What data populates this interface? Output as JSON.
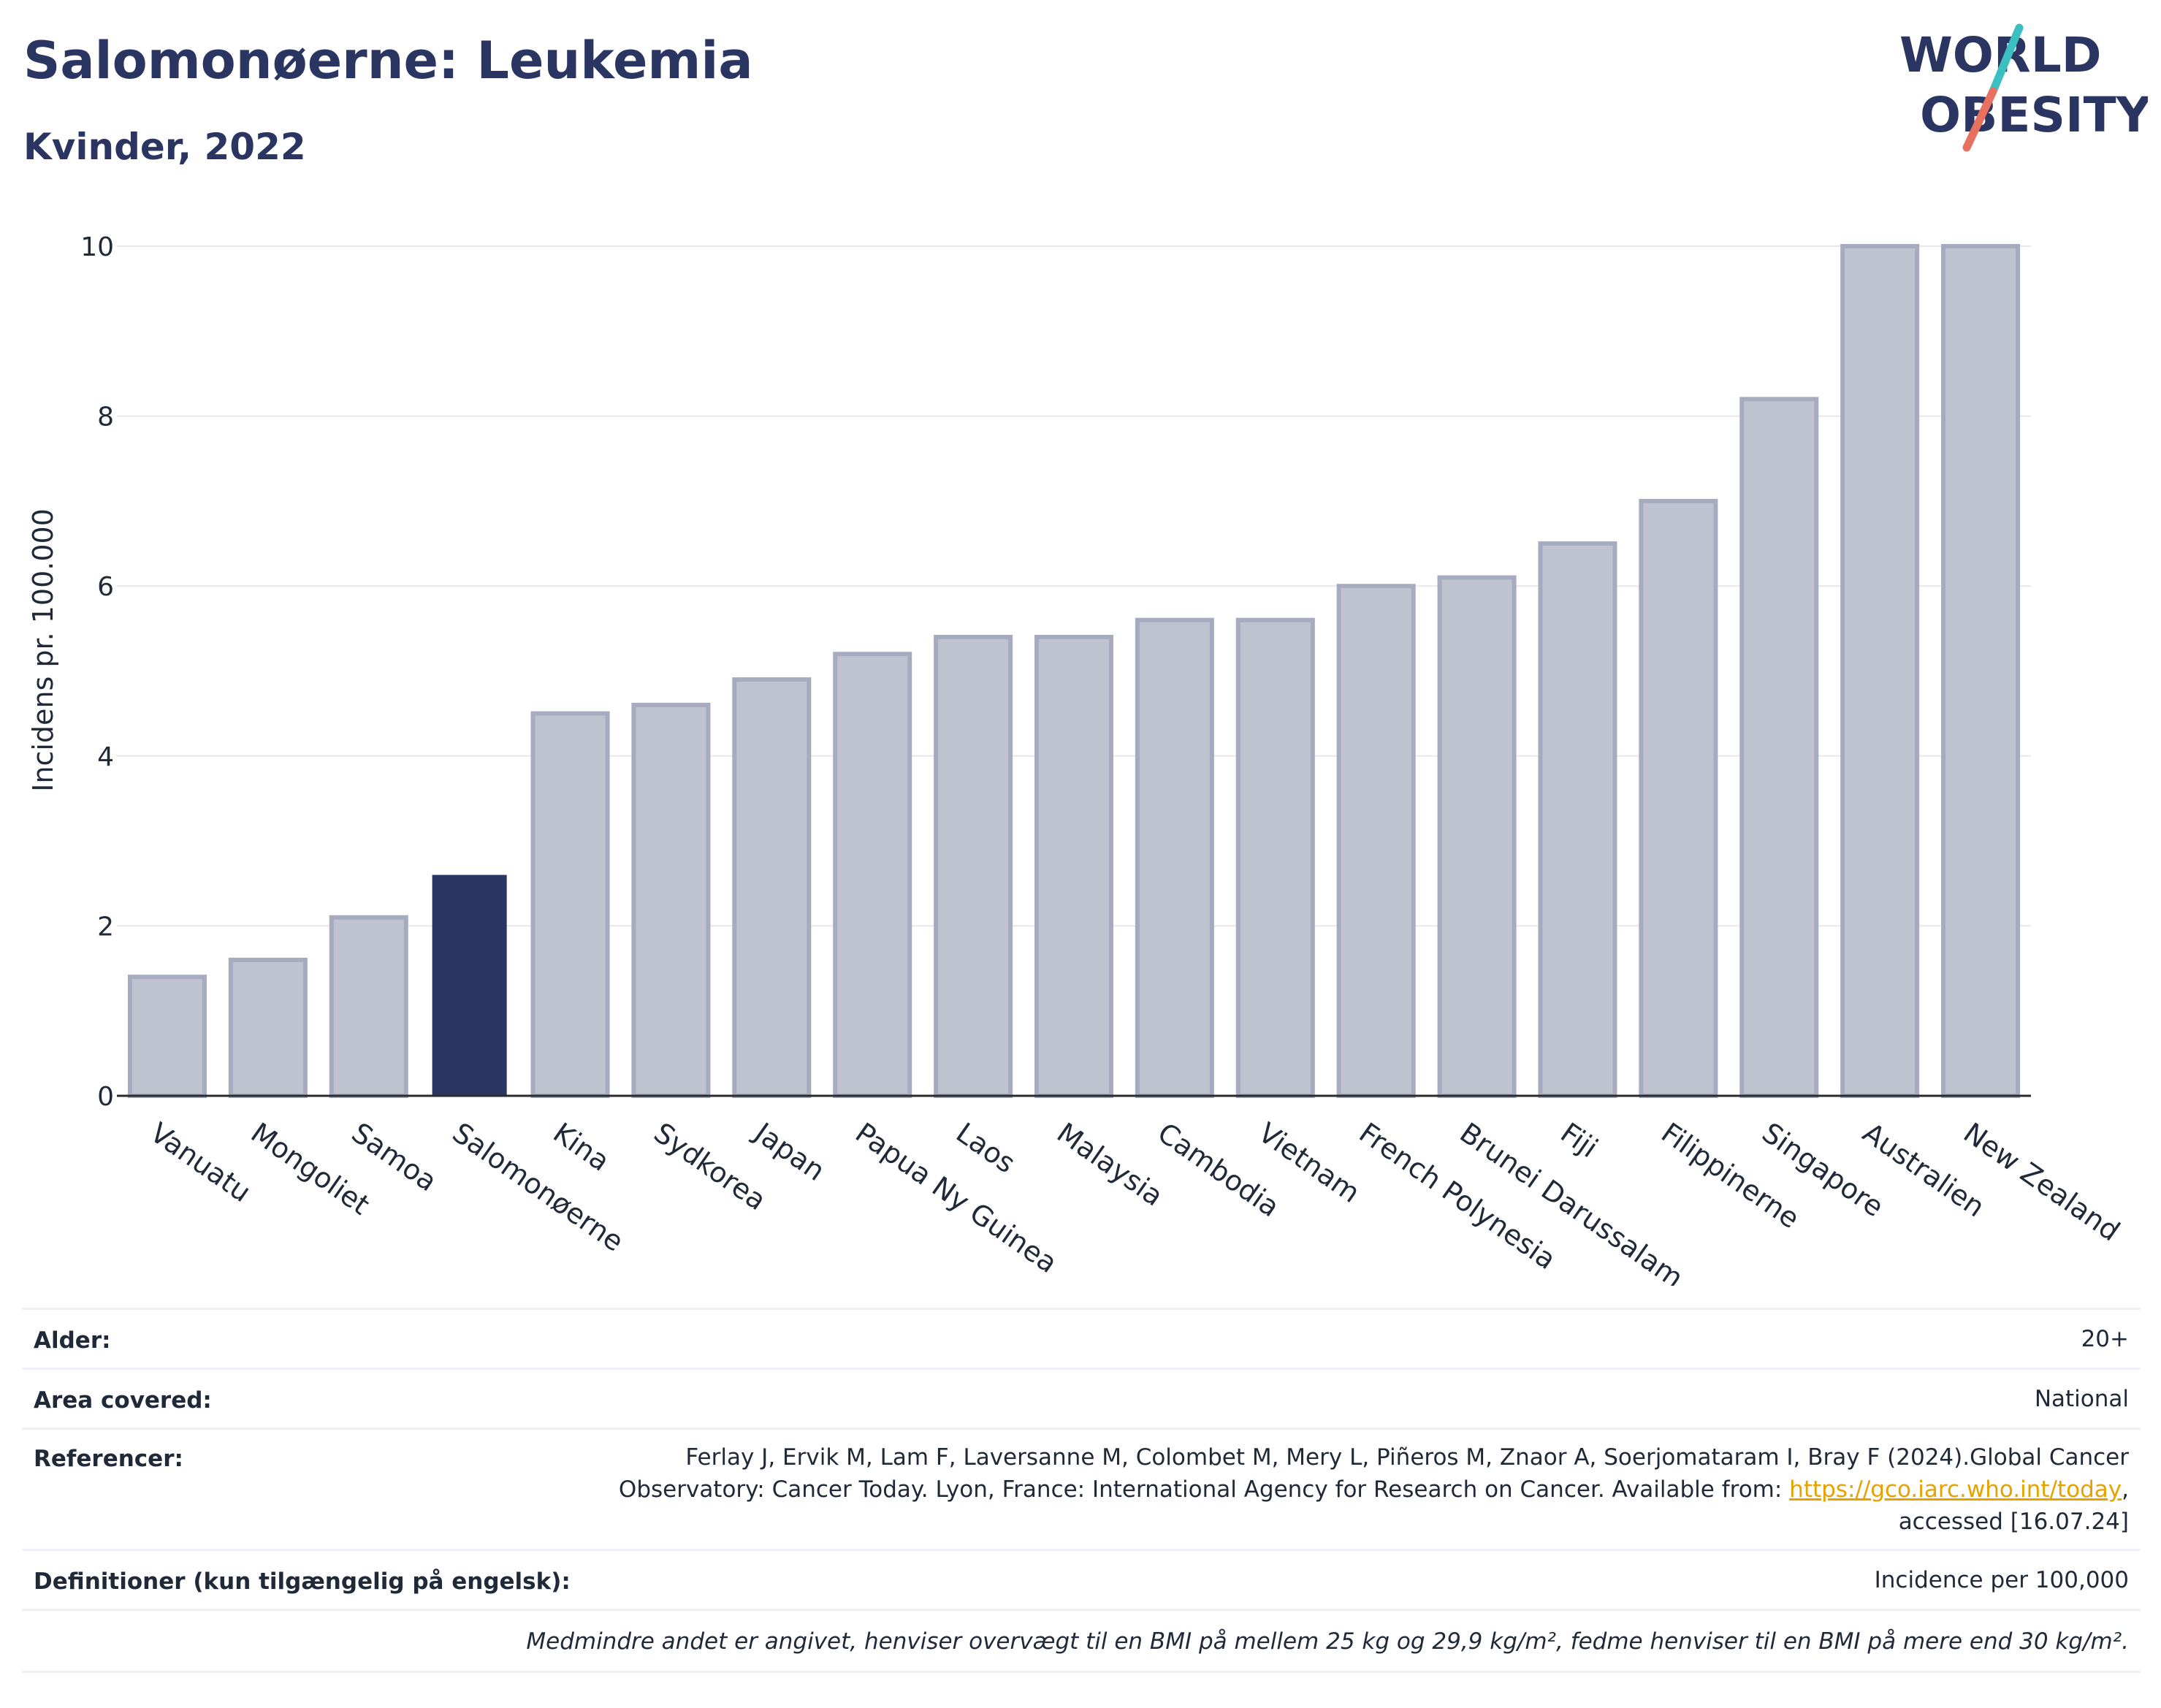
{
  "header": {
    "title": "Salomonøerne: Leukemia",
    "subtitle": "Kvinder, 2022"
  },
  "logo": {
    "line1": "WORLD",
    "line2": "OBESITY"
  },
  "colors": {
    "highlight": "#2b3561",
    "bar_fill": "#bfc3d0",
    "bar_stroke": "#a6abc0",
    "grid": "#e6e8ee",
    "logo_text": "#2b3561",
    "logo_slash_top": "#3bbfc1",
    "logo_slash_bottom": "#e7705f"
  },
  "chart_data": {
    "type": "bar",
    "title": "Salomonøerne: Leukemia",
    "subtitle": "Kvinder, 2022",
    "xlabel": "",
    "ylabel": "Incidens pr. 100.000",
    "ylim": [
      0,
      10
    ],
    "yticks": [
      0,
      2,
      4,
      6,
      8,
      10
    ],
    "grid": true,
    "highlight_category": "Salomonøerne",
    "categories": [
      "Vanuatu",
      "Mongoliet",
      "Samoa",
      "Salomonøerne",
      "Kina",
      "Sydkorea",
      "Japan",
      "Papua Ny Guinea",
      "Laos",
      "Malaysia",
      "Cambodia",
      "Vietnam",
      "French Polynesia",
      "Brunei Darussalam",
      "Fiji",
      "Filippinerne",
      "Singapore",
      "Australien",
      "New Zealand"
    ],
    "values": [
      1.4,
      1.6,
      2.1,
      2.6,
      4.5,
      4.6,
      4.9,
      5.2,
      5.4,
      5.4,
      5.6,
      5.6,
      6.0,
      6.1,
      6.5,
      7.0,
      8.2,
      10.0,
      10.0
    ]
  },
  "info": {
    "age_label": "Alder:",
    "age_value": "20+",
    "area_label": "Area covered:",
    "area_value": "National",
    "ref_label": "Referencer:",
    "ref_line1": "Ferlay J, Ervik M, Lam F, Laversanne M, Colombet M, Mery L, Piñeros M, Znaor A, Soerjomataram I, Bray F (2024).Global Cancer",
    "ref_line2": "Observatory: Cancer Today. Lyon, France: International Agency for Research on Cancer. Available from: ",
    "ref_link": "https://gco.iarc.who.int/today",
    "ref_line2_end": ",",
    "ref_line3": "accessed [16.07.24]",
    "def_label": "Definitioner (kun tilgængelig på engelsk):",
    "def_value": "Incidence per 100,000",
    "note": "Medmindre andet er angivet, henviser overvægt til en BMI på mellem 25 kg og 29,9 kg/m², fedme henviser til en BMI på mere end 30 kg/m²."
  }
}
